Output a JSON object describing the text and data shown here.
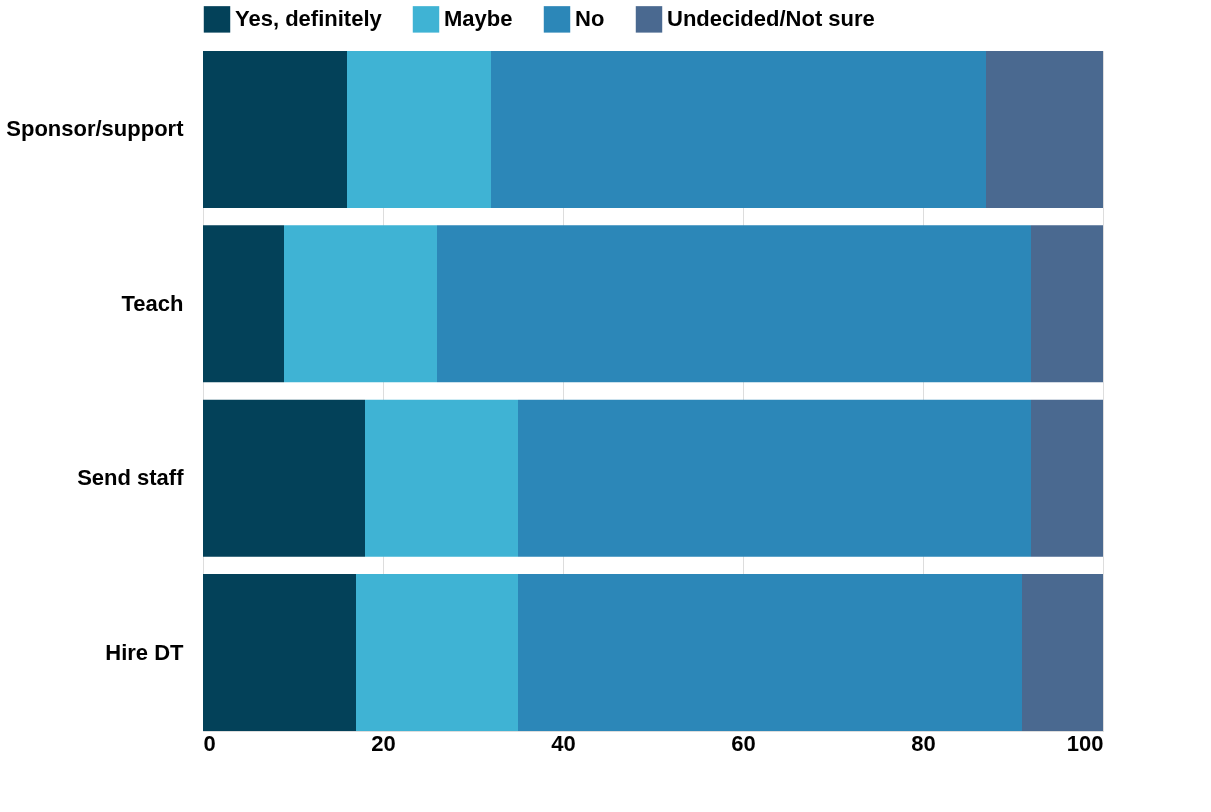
{
  "chart_data": {
    "type": "bar",
    "orientation": "horizontal",
    "stacked": true,
    "categories": [
      "Sponsor/support",
      "Teach",
      "Send staff",
      "Hire DT"
    ],
    "series": [
      {
        "name": "Yes, definitely",
        "color": "#034159",
        "values": [
          16,
          9,
          18,
          17
        ]
      },
      {
        "name": "Maybe",
        "color": "#3fb3d4",
        "values": [
          16,
          17,
          17,
          18
        ]
      },
      {
        "name": "No",
        "color": "#2c87b8",
        "values": [
          55,
          66,
          57,
          56
        ]
      },
      {
        "name": "Undecided/Not sure",
        "color": "#4a6990",
        "values": [
          13,
          8,
          8,
          9
        ]
      }
    ],
    "xlim": [
      0,
      100
    ],
    "xticks": [
      0,
      20,
      40,
      60,
      80,
      100
    ],
    "grid": "x",
    "legend": "top"
  }
}
